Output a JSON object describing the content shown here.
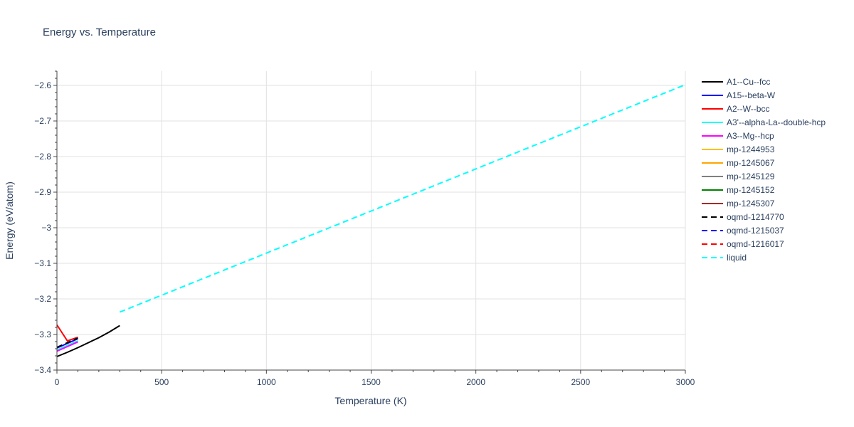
{
  "chart_data": {
    "type": "line",
    "title": "Energy vs. Temperature",
    "xlabel": "Temperature (K)",
    "ylabel": "Energy (eV/atom)",
    "xlim": [
      0,
      3000
    ],
    "ylim": [
      -3.4,
      -2.56
    ],
    "x_ticks": [
      0,
      500,
      1000,
      1500,
      2000,
      2500,
      3000
    ],
    "x_tick_labels": [
      "0",
      "500",
      "1000",
      "1500",
      "2000",
      "2500",
      "3000"
    ],
    "y_ticks": [
      -3.4,
      -3.3,
      -3.2,
      -3.1,
      -3.0,
      -2.9,
      -2.8,
      -2.7,
      -2.6
    ],
    "y_tick_labels": [
      "−3.4",
      "−3.3",
      "−3.2",
      "−3.1",
      "−3",
      "−2.9",
      "−2.8",
      "−2.7",
      "−2.6"
    ],
    "grid": true,
    "legend_position": "right",
    "series": [
      {
        "name": "A1--Cu--fcc",
        "color": "#000000",
        "dash": "solid",
        "x": [
          0,
          50,
          100,
          150,
          200,
          250,
          300
        ],
        "y": [
          -3.362,
          -3.35,
          -3.337,
          -3.323,
          -3.309,
          -3.293,
          -3.275
        ]
      },
      {
        "name": "A15--beta-W",
        "color": "#0000ff",
        "dash": "solid",
        "x": [
          0,
          50,
          100
        ],
        "y": [
          -3.338,
          -3.325,
          -3.312
        ]
      },
      {
        "name": "A2--W--bcc",
        "color": "#ff0000",
        "dash": "solid",
        "x": [
          0,
          50,
          100
        ],
        "y": [
          -3.273,
          -3.318,
          -3.308
        ]
      },
      {
        "name": "A3'--alpha-La--double-hcp",
        "color": "#00ffff",
        "dash": "solid",
        "x": [
          0,
          50,
          100
        ],
        "y": [
          -3.344,
          -3.331,
          -3.318
        ]
      },
      {
        "name": "A3--Mg--hcp",
        "color": "#ff00ff",
        "dash": "solid",
        "x": [
          0,
          50,
          100
        ],
        "y": [
          -3.347,
          -3.334,
          -3.321
        ]
      },
      {
        "name": "mp-1244953",
        "color": "#ffc000",
        "dash": "solid",
        "x": [],
        "y": []
      },
      {
        "name": "mp-1245067",
        "color": "#ffa500",
        "dash": "solid",
        "x": [],
        "y": []
      },
      {
        "name": "mp-1245129",
        "color": "#808080",
        "dash": "solid",
        "x": [],
        "y": []
      },
      {
        "name": "mp-1245152",
        "color": "#008000",
        "dash": "solid",
        "x": [],
        "y": []
      },
      {
        "name": "mp-1245307",
        "color": "#a52a2a",
        "dash": "solid",
        "x": [],
        "y": []
      },
      {
        "name": "oqmd-1214770",
        "color": "#000000",
        "dash": "dash",
        "x": [
          0,
          50,
          100
        ],
        "y": [
          -3.336,
          -3.323,
          -3.31
        ]
      },
      {
        "name": "oqmd-1215037",
        "color": "#0000ff",
        "dash": "dash",
        "x": [],
        "y": []
      },
      {
        "name": "oqmd-1216017",
        "color": "#ff0000",
        "dash": "dash",
        "x": [],
        "y": []
      },
      {
        "name": "liquid",
        "color": "#00ffff",
        "dash": "dash",
        "x": [
          300,
          3000
        ],
        "y": [
          -3.237,
          -2.598
        ]
      }
    ]
  }
}
